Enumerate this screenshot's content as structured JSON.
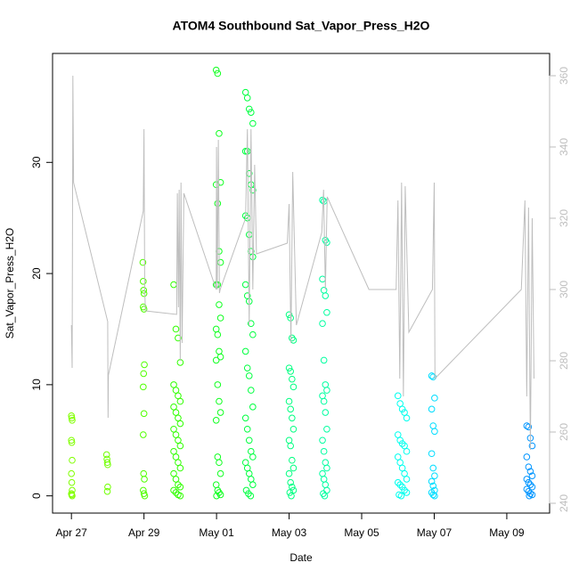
{
  "chart_data": {
    "type": "scatter",
    "title": "ATOM4 Southbound Sat_Vapor_Press_H2O",
    "x_label": "Date",
    "y_label": "Sat_Vapor_Press_H2O",
    "xlim": [
      -0.52,
      13.18
    ],
    "xticks": [
      {
        "value": 0,
        "label": "Apr 27"
      },
      {
        "value": 2,
        "label": "Apr 29"
      },
      {
        "value": 4,
        "label": "May 01"
      },
      {
        "value": 6,
        "label": "May 03"
      },
      {
        "value": 8,
        "label": "May 05"
      },
      {
        "value": 10,
        "label": "May 07"
      },
      {
        "value": 12,
        "label": "May 09"
      }
    ],
    "ylim": [
      -1.55,
      39.8
    ],
    "yticks": [
      0,
      10,
      20,
      30
    ],
    "y2lim": [
      237.25,
      366.25
    ],
    "y2ticks": [
      240,
      260,
      280,
      300,
      320,
      340,
      360
    ],
    "y2_color": "#bebebe",
    "series": [
      {
        "color": "#80ff00",
        "x": [
          0,
          0.01,
          0.02,
          0,
          0.01,
          0.02,
          0,
          0.01,
          0.02,
          0,
          0.01,
          0.02
        ],
        "values": [
          7.2,
          7.0,
          6.8,
          5.0,
          4.8,
          3.2,
          2.0,
          1.2,
          0.5,
          0.2,
          0.1,
          0
        ]
      },
      {
        "color": "#70ff00",
        "x": [
          0.97,
          0.98,
          0.99,
          1.0,
          1.0,
          0.99
        ],
        "values": [
          3.7,
          3.3,
          3.0,
          2.8,
          0.8,
          0.4
        ]
      },
      {
        "color": "#50ff00",
        "x": [
          1.97,
          1.98,
          1.99,
          2.0,
          1.98,
          2.0,
          2.01,
          1.99,
          1.98,
          2.0,
          1.98,
          1.99,
          2.01,
          1.98,
          2.0,
          2.02
        ],
        "values": [
          21,
          19.3,
          18.5,
          18.2,
          17,
          16.8,
          11.8,
          11,
          9.8,
          7.4,
          5.5,
          2,
          1.5,
          0.5,
          0.2,
          0
        ]
      },
      {
        "color": "#30ff00",
        "x": [
          2.82,
          2.88,
          2.94,
          3.0,
          2.82,
          2.88,
          2.94,
          3.0,
          2.82,
          2.88,
          2.94,
          3.0,
          2.82,
          2.88,
          2.94,
          3.0,
          2.82,
          2.88,
          2.94,
          3.0,
          2.82,
          2.88,
          2.94,
          3.0,
          2.82,
          2.88,
          2.94,
          3.0
        ],
        "values": [
          19,
          15,
          14.2,
          12,
          10,
          9.5,
          9,
          8.5,
          8,
          7.5,
          7,
          6.5,
          6,
          5.5,
          5,
          4.5,
          4,
          3.5,
          3,
          2.5,
          2,
          1.5,
          1,
          0.8,
          0.5,
          0.3,
          0.1,
          0
        ]
      },
      {
        "color": "#10ff20",
        "x": [
          3.99,
          4.03,
          4.07,
          4.11,
          3.99,
          4.03,
          4.07,
          4.11,
          3.99,
          4.03,
          4.07,
          4.11,
          3.99,
          4.03,
          4.07,
          4.11,
          3.99,
          4.03,
          4.07,
          4.11,
          3.99,
          4.03,
          4.07,
          4.11,
          3.99,
          4.03,
          4.07,
          4.11,
          4.0
        ],
        "values": [
          38.3,
          38,
          32.6,
          28.2,
          28,
          26.3,
          22,
          21,
          19,
          19,
          17.2,
          16,
          15,
          14.5,
          13,
          12.5,
          12.2,
          10,
          8.5,
          7.5,
          6.8,
          3.5,
          3,
          2,
          1,
          0.5,
          0.3,
          0.1,
          0
        ]
      },
      {
        "color": "#00ff40",
        "x": [
          4.8,
          4.85,
          4.9,
          4.95,
          5.0,
          4.8,
          4.85,
          4.9,
          4.95,
          5.0,
          4.8,
          4.85,
          4.9,
          4.95,
          5.0,
          4.8,
          4.85,
          4.9,
          4.95,
          5.0,
          4.8,
          4.85,
          4.9,
          4.95,
          5.0,
          4.8,
          4.85,
          4.9,
          4.95,
          5.0,
          4.8,
          4.85,
          4.9,
          4.95,
          5.0,
          4.82,
          4.88,
          4.94
        ],
        "values": [
          36.3,
          35.8,
          34.8,
          34.5,
          33.5,
          31,
          31,
          29,
          28,
          27.5,
          25.2,
          25,
          23.5,
          22,
          21.5,
          19,
          18,
          17.5,
          15.5,
          14.5,
          13,
          11.5,
          10.8,
          9.5,
          8,
          7,
          6,
          5,
          4,
          3.5,
          3,
          2.5,
          2,
          1.5,
          1,
          0.5,
          0.2,
          0
        ]
      },
      {
        "color": "#00ff80",
        "x": [
          6.0,
          6.04,
          6.08,
          6.12,
          6.0,
          6.04,
          6.08,
          6.12,
          6.0,
          6.04,
          6.08,
          6.12,
          6.0,
          6.04,
          6.08,
          6.12,
          6.0,
          6.04,
          6.08,
          6.12,
          6.02,
          6.06
        ],
        "values": [
          16.3,
          16,
          14.2,
          14,
          11.5,
          11.2,
          10.5,
          9.8,
          8.5,
          7.8,
          7,
          6,
          5,
          4.5,
          3.2,
          2.5,
          2,
          1.2,
          0.8,
          0.5,
          0.3,
          0
        ]
      },
      {
        "color": "#00ffa0",
        "x": [
          6.92,
          6.96,
          7.0,
          7.04,
          6.92,
          6.96,
          7.0,
          7.04,
          6.92,
          6.96,
          7.0,
          7.04,
          6.92,
          6.96,
          7.0,
          7.04,
          6.92,
          6.96,
          7.0,
          7.04,
          6.92,
          6.96,
          7.0,
          7.04,
          6.94,
          6.98
        ],
        "values": [
          26.6,
          26.5,
          23,
          22.8,
          19.5,
          18.5,
          18,
          16.5,
          15.5,
          12.2,
          10,
          9.5,
          9,
          8.5,
          7.5,
          6,
          5,
          4,
          3,
          2.5,
          2,
          1.5,
          1,
          0.5,
          0.2,
          0
        ]
      },
      {
        "color": "#00ffee",
        "x": [
          9.0,
          9.06,
          9.12,
          9.18,
          9.24,
          9.0,
          9.06,
          9.12,
          9.18,
          9.24,
          9.0,
          9.06,
          9.12,
          9.18,
          9.24,
          9.0,
          9.06,
          9.12,
          9.18,
          9.24,
          9.03,
          9.09
        ],
        "values": [
          9,
          8.3,
          7.8,
          7.5,
          7,
          5.5,
          5,
          4.7,
          4.5,
          4,
          3.5,
          3,
          2.5,
          2,
          1.5,
          1.2,
          1,
          0.8,
          0.5,
          0.3,
          0.1,
          0
        ]
      },
      {
        "color": "#00ddff",
        "x": [
          9.93,
          9.97,
          10.01,
          9.93,
          9.97,
          10.01,
          9.93,
          9.97,
          10.01,
          9.93,
          9.97,
          10.01,
          9.93,
          9.97,
          10.01
        ],
        "values": [
          10.8,
          10.7,
          8.8,
          7.8,
          6.3,
          5.8,
          3.8,
          2.5,
          1.8,
          1.3,
          0.9,
          0.5,
          0.3,
          0.1,
          0
        ]
      },
      {
        "color": "#0095ff",
        "x": [
          12.55,
          12.6,
          12.65,
          12.7,
          12.55,
          12.6,
          12.65,
          12.7,
          12.55,
          12.6,
          12.65,
          12.7,
          12.55,
          12.6,
          12.65,
          12.7,
          12.62
        ],
        "values": [
          6.3,
          6.2,
          5.2,
          4.5,
          3.5,
          2.6,
          2.2,
          1.8,
          1.5,
          1.2,
          1,
          0.8,
          0.6,
          0.4,
          0.2,
          0.1,
          0
        ]
      },
      {
        "type": "line",
        "axis": "y2",
        "color": "#bebebe",
        "x": [
          0,
          0.02,
          0.04,
          0.06,
          1.0,
          1.01,
          1.02,
          1.98,
          2.0,
          2.02,
          2.04,
          2.9,
          2.92,
          2.95,
          2.97,
          3.0,
          3.02,
          3.05,
          3.1,
          3.99,
          4.0,
          4.02,
          4.05,
          4.08,
          4.1,
          4.8,
          4.85,
          4.9,
          4.95,
          5.0,
          5.05,
          5.1,
          5.95,
          6.0,
          6.05,
          6.1,
          6.2,
          6.9,
          6.95,
          7.0,
          7.05,
          8.2,
          8.95,
          9.0,
          9.05,
          9.1,
          9.15,
          9.2,
          9.3,
          9.95,
          10.0,
          10.02,
          12.4,
          12.5,
          12.55,
          12.6,
          12.65,
          12.7,
          12.75
        ],
        "values": [
          290,
          278,
          360,
          330,
          291,
          264,
          276,
          322,
          345,
          300,
          294,
          293,
          327,
          295,
          328,
          280,
          330,
          285,
          327,
          300,
          340,
          300,
          342,
          299,
          300,
          320,
          345,
          290,
          345,
          300,
          335,
          310,
          313,
          324,
          285,
          333,
          290,
          316,
          328,
          300,
          326,
          300,
          300,
          325,
          275,
          330,
          270,
          329,
          288,
          300,
          330,
          275,
          300,
          325,
          270,
          323,
          255,
          320,
          275
        ]
      }
    ]
  }
}
